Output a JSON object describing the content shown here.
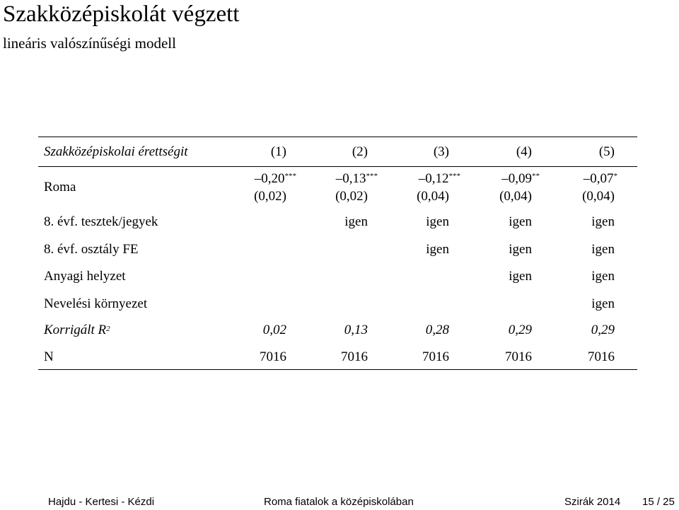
{
  "slide": {
    "title": "Szakközépiskolát végzett",
    "subtitle": "lineáris valószínűségi modell"
  },
  "table": {
    "header_label": "Szakközépiskolai érettségit",
    "columns": [
      "(1)",
      "(2)",
      "(3)",
      "(4)",
      "(5)"
    ],
    "roma": {
      "label": "Roma",
      "coefs": [
        "–0,20",
        "–0,13",
        "–0,12",
        "–0,09",
        "–0,07"
      ],
      "stars": [
        "***",
        "***",
        "***",
        "**",
        "*"
      ],
      "se": [
        "(0,02)",
        "(0,02)",
        "(0,04)",
        "(0,04)",
        "(0,04)"
      ]
    },
    "controls": [
      {
        "label": "8. évf. tesztek/jegyek",
        "values": [
          "",
          "igen",
          "igen",
          "igen",
          "igen"
        ]
      },
      {
        "label": "8. évf. osztály FE",
        "values": [
          "",
          "",
          "igen",
          "igen",
          "igen"
        ]
      },
      {
        "label": "Anyagi helyzet",
        "values": [
          "",
          "",
          "",
          "igen",
          "igen"
        ]
      },
      {
        "label": "Nevelési környezet",
        "values": [
          "",
          "",
          "",
          "",
          "igen"
        ]
      }
    ],
    "r2": {
      "label": "Korrigált R",
      "label_sup": "2",
      "values": [
        "0,02",
        "0,13",
        "0,28",
        "0,29",
        "0,29"
      ]
    },
    "n": {
      "label": "N",
      "values": [
        "7016",
        "7016",
        "7016",
        "7016",
        "7016"
      ]
    }
  },
  "footer": {
    "authors": "Hajdu - Kertesi - Kézdi",
    "talk": "Roma fiatalok a középiskolában",
    "venue": "Szirák 2014",
    "page": "15 / 25"
  }
}
